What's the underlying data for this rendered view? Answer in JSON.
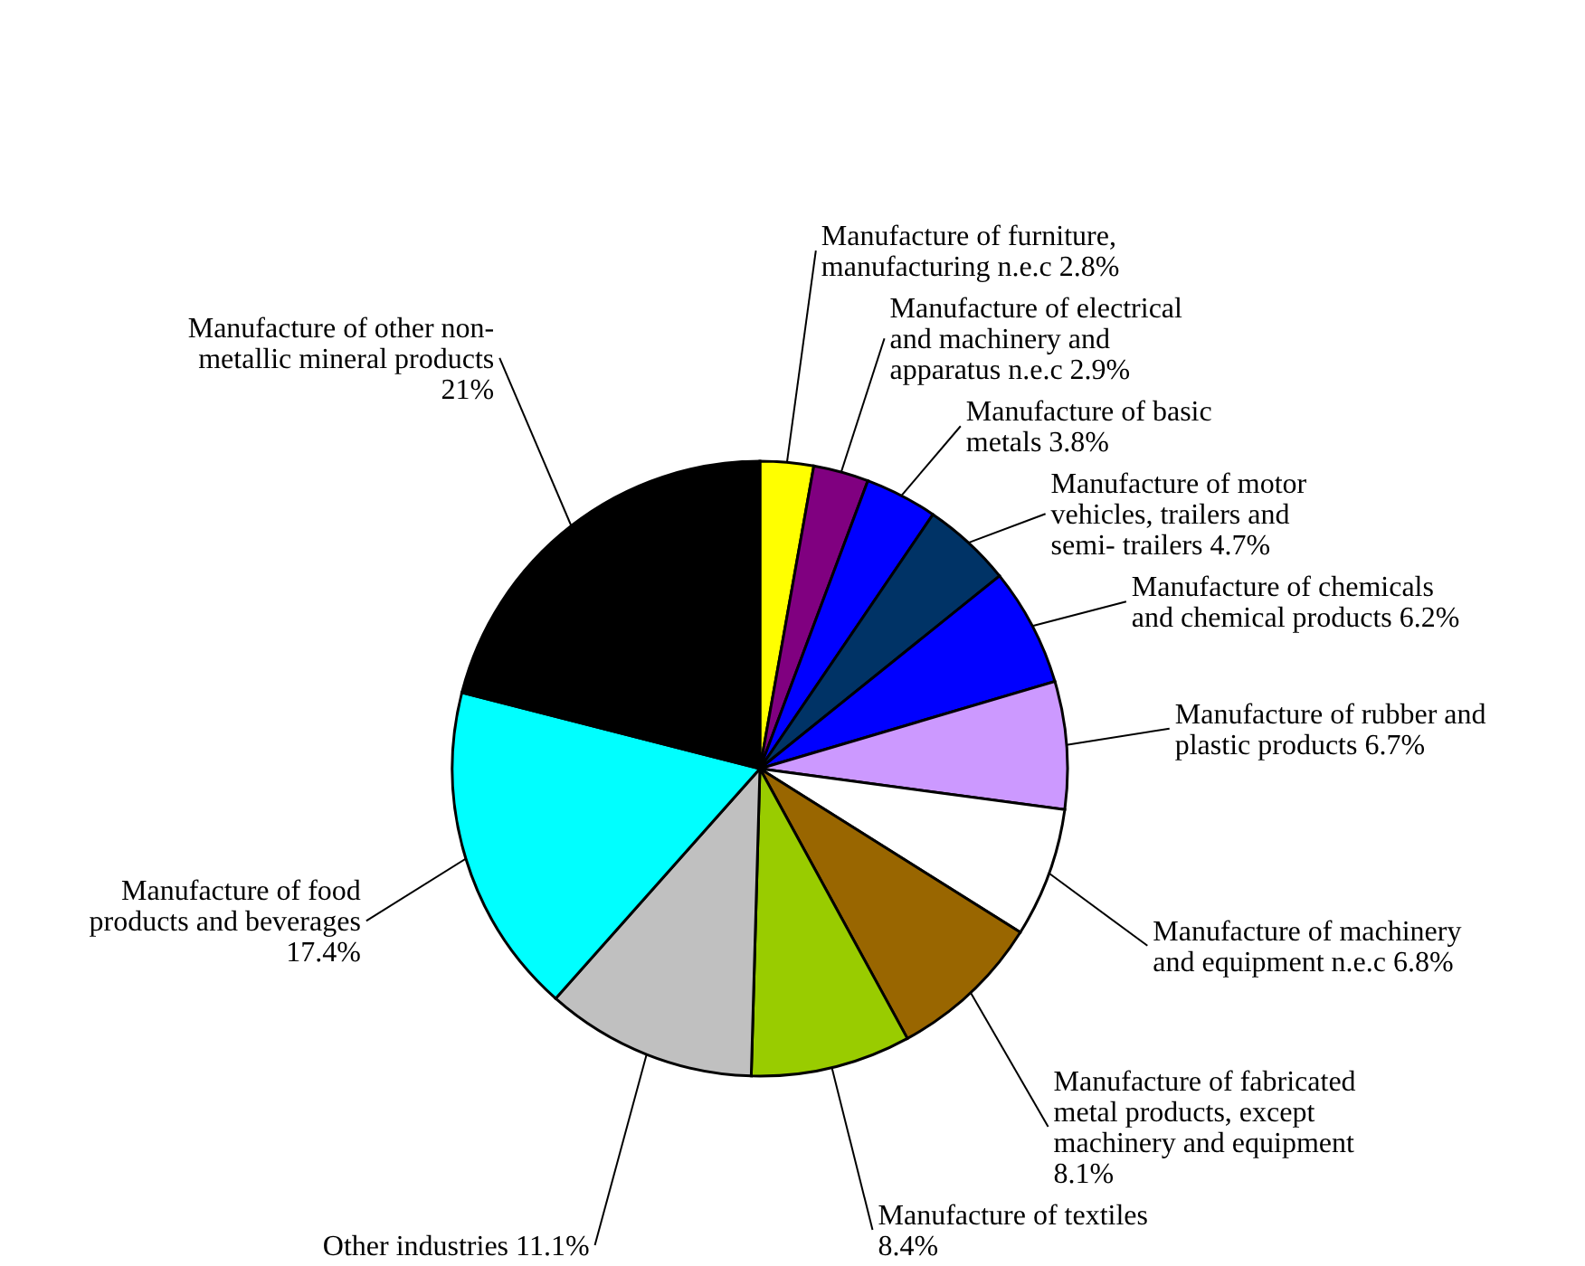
{
  "chart_data": {
    "type": "pie",
    "categories": [
      "Manufacture of furniture, manufacturing n.e.c",
      "Manufacture of electrical and machinery and apparatus n.e.c",
      "Manufacture of basic metals",
      "Manufacture of motor vehicles, trailers and semi- trailers",
      "Manufacture of chemicals and chemical products",
      "Manufacture of rubber and plastic products",
      "Manufacture of machinery and equipment n.e.c",
      "Manufacture of fabricated metal products, except machinery and equipment",
      "Manufacture of textiles",
      "Other industries",
      "Manufacture of food products and beverages",
      "Manufacture of other non- metallic mineral products"
    ],
    "values": [
      2.8,
      2.9,
      3.8,
      4.7,
      6.2,
      6.7,
      6.8,
      8.1,
      8.4,
      11.1,
      17.4,
      21
    ],
    "value_labels": [
      "2.8%",
      "2.9%",
      "3.8%",
      "4.7%",
      "6.2%",
      "6.7%",
      "6.8%",
      "8.1%",
      "8.4%",
      "11.1%",
      "17.4%",
      "21%"
    ],
    "colors": [
      "#ffff00",
      "#800080",
      "#0000ff",
      "#003366",
      "#0000ff",
      "#cc99ff",
      "#ffffff",
      "#996600",
      "#99cc00",
      "#c0c0c0",
      "#00ffff",
      "#000000"
    ]
  }
}
